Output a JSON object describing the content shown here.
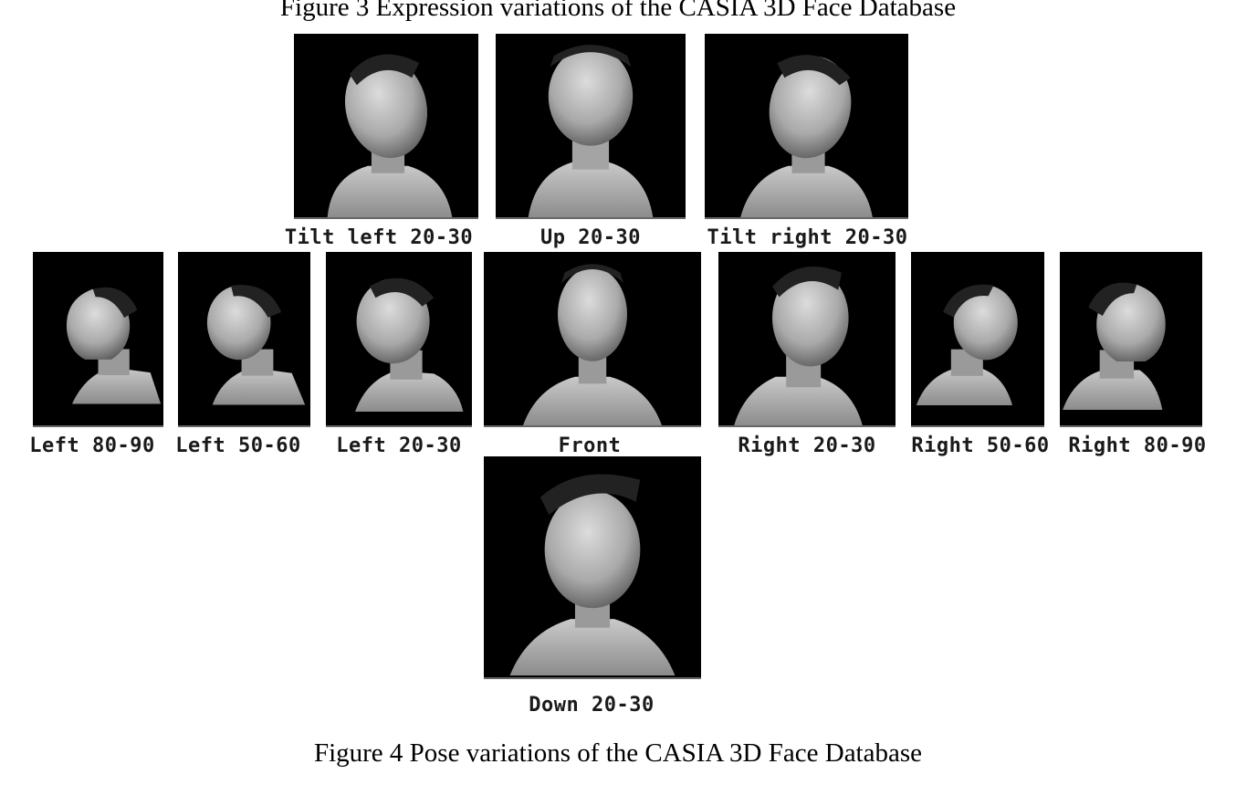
{
  "figure3": {
    "caption": "Figure 3 Expression variations of the CASIA 3D Face Database"
  },
  "figure4": {
    "caption": "Figure 4 Pose variations of the CASIA 3D Face Database",
    "poses": {
      "tilt_left": "Tilt left 20-30",
      "up": "Up 20-30",
      "tilt_right": "Tilt right 20-30",
      "left_80_90": "Left 80-90",
      "left_50_60": "Left 50-60",
      "left_20_30": "Left 20-30",
      "front": "Front",
      "right_20_30": "Right 20-30",
      "right_50_60": "Right 50-60",
      "right_80_90": "Right 80-90",
      "down": "Down 20-30"
    }
  },
  "colors": {
    "tile_background": "#000000",
    "face_shade": "#b8b8b8"
  }
}
